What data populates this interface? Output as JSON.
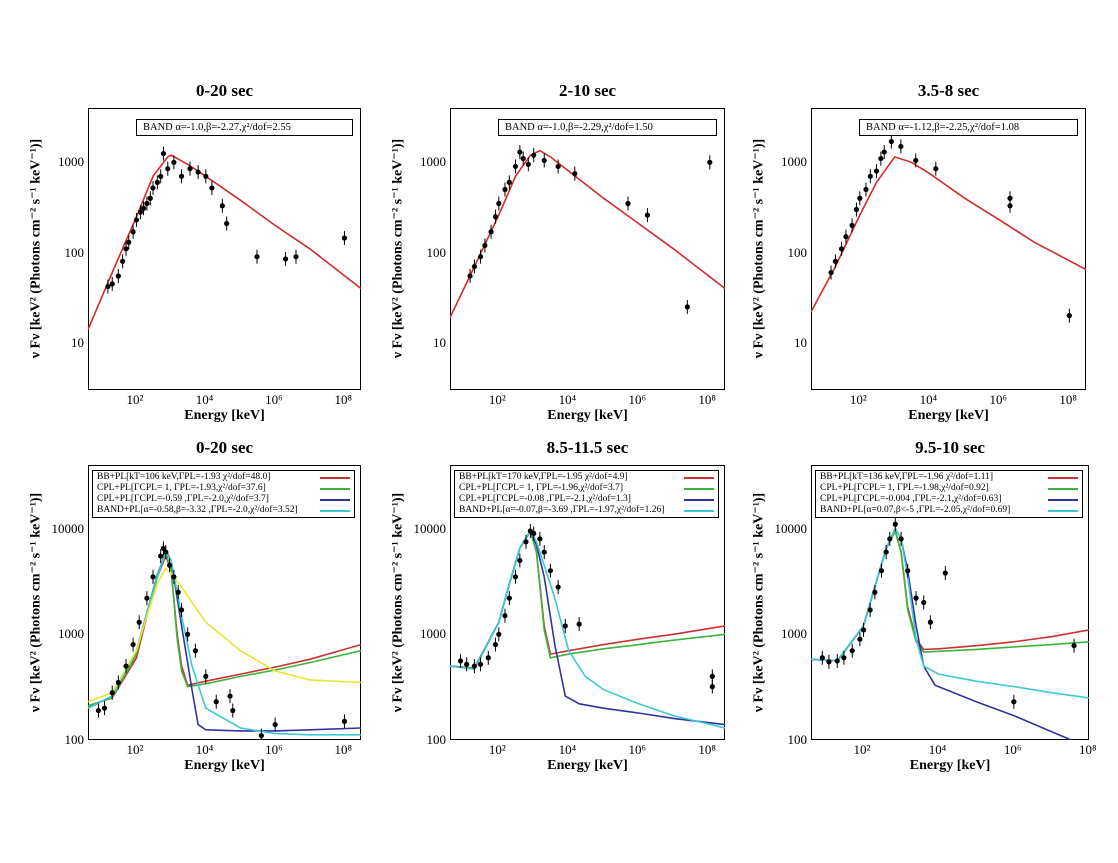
{
  "chart_data": [
    {
      "type": "line",
      "title": "0-20 sec",
      "xlabel": "Energy [keV]",
      "ylabel": "ν Fν [keV² (Photons cm⁻² s⁻¹ keV⁻¹)]",
      "xscale": "log",
      "yscale": "log",
      "xlim": [
        4,
        300000000
      ],
      "ylim": [
        3,
        4000
      ],
      "xticks": [
        "10²",
        "10⁴",
        "10⁶",
        "10⁸"
      ],
      "yticks": [
        "10",
        "100",
        "1000"
      ],
      "legend": [
        "BAND α=-1.0,β=-2.27,χ²/dof=2.55"
      ],
      "series": [
        {
          "name": "BAND",
          "color": "#d42a2a",
          "x": [
            4,
            20,
            100,
            300,
            800,
            1000,
            3000,
            10000,
            100000,
            1000000,
            10000000,
            300000000
          ],
          "y": [
            14,
            60,
            250,
            700,
            1150,
            1200,
            950,
            700,
            380,
            200,
            110,
            40
          ]
        },
        {
          "name": "data",
          "x": [
            15,
            20,
            30,
            40,
            50,
            60,
            80,
            100,
            130,
            160,
            200,
            250,
            300,
            400,
            500,
            600,
            800,
            1200,
            2000,
            3500,
            6000,
            10000,
            15000,
            30000,
            40000,
            300000,
            2000000,
            4000000,
            100000000
          ],
          "y": [
            42,
            45,
            55,
            80,
            110,
            130,
            170,
            230,
            280,
            310,
            350,
            400,
            520,
            600,
            700,
            1250,
            850,
            1000,
            700,
            850,
            780,
            700,
            520,
            330,
            210,
            90,
            85,
            90,
            145
          ]
        }
      ]
    },
    {
      "type": "line",
      "title": "2-10 sec",
      "xlabel": "Energy [keV]",
      "ylabel": "ν Fν [keV² (Photons cm⁻² s⁻¹ keV⁻¹)]",
      "xscale": "log",
      "yscale": "log",
      "xlim": [
        4,
        300000000
      ],
      "ylim": [
        3,
        4000
      ],
      "xticks": [
        "10²",
        "10⁴",
        "10⁶",
        "10⁸"
      ],
      "yticks": [
        "10",
        "100",
        "1000"
      ],
      "legend": [
        "BAND α=-1.0,β=-2.29,χ²/dof=1.50"
      ],
      "series": [
        {
          "name": "BAND",
          "color": "#d42a2a",
          "x": [
            4,
            20,
            100,
            300,
            800,
            1500,
            3000,
            10000,
            100000,
            1000000,
            10000000,
            300000000
          ],
          "y": [
            19,
            70,
            260,
            700,
            1200,
            1350,
            1150,
            800,
            400,
            210,
            110,
            40
          ]
        },
        {
          "name": "data",
          "x": [
            15,
            20,
            30,
            40,
            60,
            80,
            100,
            150,
            200,
            300,
            400,
            500,
            700,
            1000,
            2000,
            5000,
            15000,
            500000,
            1800000,
            25000000,
            110000000
          ],
          "y": [
            55,
            70,
            90,
            120,
            170,
            250,
            350,
            500,
            600,
            900,
            1300,
            1100,
            950,
            1200,
            1050,
            900,
            750,
            350,
            260,
            25,
            1000
          ]
        }
      ]
    },
    {
      "type": "line",
      "title": "3.5-8 sec",
      "xlabel": "Energy [keV]",
      "ylabel": "ν Fν [keV² (Photons cm⁻² s⁻¹ keV⁻¹)]",
      "xscale": "log",
      "yscale": "log",
      "xlim": [
        4,
        300000000
      ],
      "ylim": [
        3,
        4000
      ],
      "xticks": [
        "10²",
        "10⁴",
        "10⁶",
        "10⁸"
      ],
      "yticks": [
        "10",
        "100",
        "1000"
      ],
      "legend": [
        "BAND α=-1.12,β=-2.25,χ²/dof=1.08"
      ],
      "series": [
        {
          "name": "BAND",
          "color": "#d42a2a",
          "x": [
            4,
            20,
            100,
            300,
            1000,
            3000,
            10000,
            100000,
            1000000,
            10000000,
            300000000
          ],
          "y": [
            22,
            70,
            260,
            600,
            1150,
            1000,
            750,
            400,
            230,
            130,
            65
          ]
        },
        {
          "name": "data",
          "x": [
            15,
            20,
            30,
            40,
            60,
            80,
            100,
            150,
            200,
            300,
            400,
            500,
            800,
            1500,
            4000,
            15000,
            2000000,
            2000000,
            100000000
          ],
          "y": [
            60,
            80,
            110,
            150,
            200,
            300,
            400,
            500,
            700,
            800,
            1100,
            1300,
            1700,
            1500,
            1050,
            850,
            400,
            330,
            20
          ]
        }
      ]
    },
    {
      "type": "line",
      "title": "0-20 sec",
      "xlabel": "Energy [keV]",
      "ylabel": "ν Fν [keV² (Photons cm⁻² s⁻¹ keV⁻¹)]",
      "xscale": "log",
      "yscale": "log",
      "xlim": [
        4,
        300000000
      ],
      "ylim": [
        100,
        40000
      ],
      "xticks": [
        "10²",
        "10⁴",
        "10⁶",
        "10⁸"
      ],
      "yticks": [
        "100",
        "1000",
        "10000"
      ],
      "legend": [
        "BB+PL[kT=106 keV,ΓPL=-1.93 χ²/dof=48.0]",
        "CPL+PL[ΓCPL= 1, ΓPL=-1.93,χ²/dof=37.6]",
        "CPL+PL[ΓCPL=-0.59 ,ΓPL=-2.0,χ²/dof=3.7]",
        "BAND+PL[α=-0.58,β=-3.32 ,ΓPL=-2.0,χ²/dof=3.52]"
      ],
      "series": [
        {
          "name": "BB+PL",
          "color": "#c83232",
          "x": [
            4,
            20,
            100,
            200,
            400,
            700,
            1000,
            1500,
            2000,
            3000,
            10000,
            100000,
            1000000,
            10000000,
            300000000
          ],
          "y": [
            210,
            250,
            600,
            1500,
            3500,
            5500,
            4000,
            1000,
            500,
            330,
            360,
            420,
            490,
            580,
            800
          ]
        },
        {
          "name": "CPL+PL Γ=1",
          "color": "#3cb43c",
          "x": [
            4,
            20,
            100,
            200,
            400,
            700,
            1000,
            1500,
            2000,
            3000,
            10000,
            100000,
            1000000,
            10000000,
            300000000
          ],
          "y": [
            210,
            250,
            650,
            1600,
            3700,
            5800,
            4200,
            900,
            450,
            320,
            340,
            400,
            460,
            540,
            700
          ]
        },
        {
          "name": "CPL+PL Γ=-0.59",
          "color": "#3232a0",
          "x": [
            4,
            20,
            100,
            200,
            400,
            700,
            1000,
            2000,
            4000,
            6000,
            10000,
            100000,
            1000000,
            10000000,
            300000000
          ],
          "y": [
            200,
            260,
            700,
            1600,
            3500,
            6200,
            5000,
            1200,
            300,
            140,
            125,
            122,
            122,
            125,
            130
          ]
        },
        {
          "name": "BAND+PL",
          "color": "#3ccad2",
          "x": [
            4,
            20,
            100,
            200,
            400,
            700,
            1000,
            2000,
            4000,
            10000,
            100000,
            1000000,
            10000000,
            300000000
          ],
          "y": [
            200,
            260,
            700,
            1600,
            3500,
            6000,
            5000,
            1500,
            500,
            200,
            130,
            115,
            112,
            112
          ]
        },
        {
          "name": "BB+PL (alt)",
          "color": "#e6e632",
          "x": [
            4,
            20,
            100,
            200,
            400,
            700,
            1000,
            2000,
            5000,
            10000,
            100000,
            1000000,
            10000000,
            300000000
          ],
          "y": [
            230,
            280,
            700,
            1500,
            3000,
            4200,
            3800,
            2800,
            1800,
            1300,
            700,
            450,
            370,
            350
          ]
        },
        {
          "name": "data",
          "x": [
            8,
            12,
            20,
            30,
            50,
            80,
            120,
            200,
            300,
            500,
            600,
            700,
            900,
            1200,
            1600,
            2000,
            3000,
            5000,
            10000,
            20000,
            50000,
            60000,
            400000,
            1000000,
            100000000
          ],
          "y": [
            190,
            200,
            280,
            350,
            500,
            800,
            1300,
            2200,
            3500,
            5500,
            6500,
            6000,
            4500,
            3500,
            2500,
            1700,
            1000,
            700,
            400,
            230,
            260,
            190,
            110,
            140,
            150
          ]
        }
      ]
    },
    {
      "type": "line",
      "title": "8.5-11.5 sec",
      "xlabel": "Energy [keV]",
      "ylabel": "ν Fν [keV² (Photons cm⁻² s⁻¹ keV⁻¹)]",
      "xscale": "log",
      "yscale": "log",
      "xlim": [
        4,
        300000000
      ],
      "ylim": [
        100,
        40000
      ],
      "xticks": [
        "10²",
        "10⁴",
        "10⁶",
        "10⁸"
      ],
      "yticks": [
        "100",
        "1000",
        "10000"
      ],
      "legend": [
        "BB+PL[kT=170 keV,ΓPL=-1.95 χ²/dof=4.9]",
        "CPL+PL[ΓCPL= 1, ΓPL=-1.96,χ²/dof=3.7]",
        "CPL+PL[ΓCPL=-0.08 ,ΓPL=-2.1,χ²/dof=1.3]",
        "BAND+PL[α=-0.07,β=-3.69 ,ΓPL=-1.97,χ²/dof=1.26]"
      ],
      "series": [
        {
          "name": "BB+PL",
          "color": "#c83232",
          "x": [
            4,
            20,
            100,
            200,
            400,
            800,
            1200,
            2000,
            3000,
            10000,
            100000,
            1000000,
            10000000,
            300000000
          ],
          "y": [
            500,
            480,
            1300,
            3000,
            6500,
            9500,
            6000,
            1200,
            650,
            700,
            800,
            900,
            1000,
            1200
          ]
        },
        {
          "name": "CPL+PL Γ=1",
          "color": "#3cb43c",
          "x": [
            4,
            20,
            100,
            200,
            400,
            800,
            1200,
            2000,
            3000,
            10000,
            100000,
            1000000,
            10000000,
            300000000
          ],
          "y": [
            500,
            480,
            1300,
            3000,
            6500,
            9500,
            6000,
            1100,
            600,
            650,
            730,
            800,
            880,
            1000
          ]
        },
        {
          "name": "CPL+PL Γ=-0.08",
          "color": "#3232a0",
          "x": [
            4,
            20,
            100,
            200,
            400,
            800,
            1200,
            2000,
            4000,
            8000,
            20000,
            100000,
            1000000,
            10000000,
            300000000
          ],
          "y": [
            500,
            470,
            1300,
            3000,
            6500,
            9500,
            7000,
            3500,
            800,
            260,
            220,
            200,
            180,
            160,
            140
          ]
        },
        {
          "name": "BAND+PL",
          "color": "#3ccad2",
          "x": [
            4,
            20,
            100,
            200,
            400,
            800,
            1200,
            2000,
            4000,
            10000,
            30000,
            100000,
            1000000,
            10000000,
            300000000
          ],
          "y": [
            500,
            470,
            1300,
            3000,
            6500,
            9500,
            7500,
            4500,
            2200,
            700,
            400,
            300,
            220,
            170,
            130
          ]
        },
        {
          "name": "data",
          "x": [
            8,
            12,
            20,
            30,
            50,
            80,
            100,
            150,
            200,
            300,
            400,
            600,
            800,
            1000,
            1500,
            2000,
            3000,
            5000,
            8000,
            20000,
            130000000,
            130000000
          ],
          "y": [
            560,
            520,
            500,
            520,
            600,
            800,
            1000,
            1500,
            2200,
            3500,
            5000,
            7500,
            9500,
            9000,
            8000,
            6000,
            4000,
            2800,
            1200,
            1250,
            400,
            320
          ]
        }
      ]
    },
    {
      "type": "line",
      "title": "9.5-10 sec",
      "xlabel": "Energy [keV]",
      "ylabel": "ν Fν [keV² (Photons cm⁻² s⁻¹ keV⁻¹)]",
      "xscale": "log",
      "yscale": "log",
      "xlim": [
        4,
        100000000
      ],
      "ylim": [
        100,
        40000
      ],
      "xticks": [
        "10²",
        "10⁴",
        "10⁶",
        "10⁸"
      ],
      "yticks": [
        "100",
        "1000",
        "10000"
      ],
      "legend": [
        "BB+PL[kT=136 keV,ΓPL=-1.96 χ²/dof=1.11]",
        "CPL+PL[ΓCPL= 1, ΓPL=-1.98,χ²/dof=0.92]",
        "CPL+PL[ΓCPL=-0.004 ,ΓPL=-2.1,χ²/dof=0.63]",
        "BAND+PL[α=0.07,β<-5 ,ΓPL=-2.05,χ²/dof=0.69]"
      ],
      "series": [
        {
          "name": "BB+PL",
          "color": "#c83232",
          "x": [
            4,
            20,
            100,
            200,
            400,
            700,
            1000,
            1500,
            2500,
            4000,
            10000,
            100000,
            1000000,
            10000000,
            100000000
          ],
          "y": [
            580,
            560,
            1200,
            2800,
            6500,
            9500,
            6000,
            1800,
            900,
            720,
            730,
            780,
            850,
            950,
            1100
          ]
        },
        {
          "name": "CPL+PL Γ=1",
          "color": "#3cb43c",
          "x": [
            4,
            20,
            100,
            200,
            400,
            700,
            1000,
            1500,
            2500,
            4000,
            10000,
            100000,
            1000000,
            10000000,
            100000000
          ],
          "y": [
            580,
            560,
            1200,
            2800,
            6500,
            9500,
            6000,
            1700,
            850,
            680,
            690,
            720,
            760,
            800,
            850
          ]
        },
        {
          "name": "CPL+PL Γ=-0.004",
          "color": "#3232a0",
          "x": [
            4,
            20,
            100,
            200,
            400,
            700,
            1000,
            1500,
            2500,
            4000,
            8000,
            100000,
            1000000,
            10000000,
            100000000
          ],
          "y": [
            580,
            560,
            1200,
            2800,
            6500,
            10000,
            8000,
            4000,
            1200,
            500,
            330,
            230,
            170,
            120,
            85
          ]
        },
        {
          "name": "BAND+PL",
          "color": "#3ccad2",
          "x": [
            4,
            20,
            100,
            200,
            400,
            700,
            1000,
            1500,
            2500,
            4000,
            10000,
            100000,
            1000000,
            10000000,
            100000000
          ],
          "y": [
            580,
            560,
            1200,
            2800,
            6500,
            10000,
            8000,
            3500,
            900,
            500,
            420,
            360,
            320,
            280,
            250
          ]
        },
        {
          "name": "data",
          "x": [
            8,
            12,
            20,
            30,
            50,
            80,
            100,
            150,
            200,
            300,
            400,
            500,
            700,
            1000,
            1500,
            2500,
            4000,
            6000,
            15000,
            1000000,
            40000000
          ],
          "y": [
            600,
            550,
            560,
            600,
            700,
            900,
            1100,
            1700,
            2500,
            4000,
            6000,
            8000,
            11000,
            8000,
            4000,
            2200,
            2000,
            1300,
            3800,
            230,
            780
          ]
        }
      ]
    }
  ]
}
